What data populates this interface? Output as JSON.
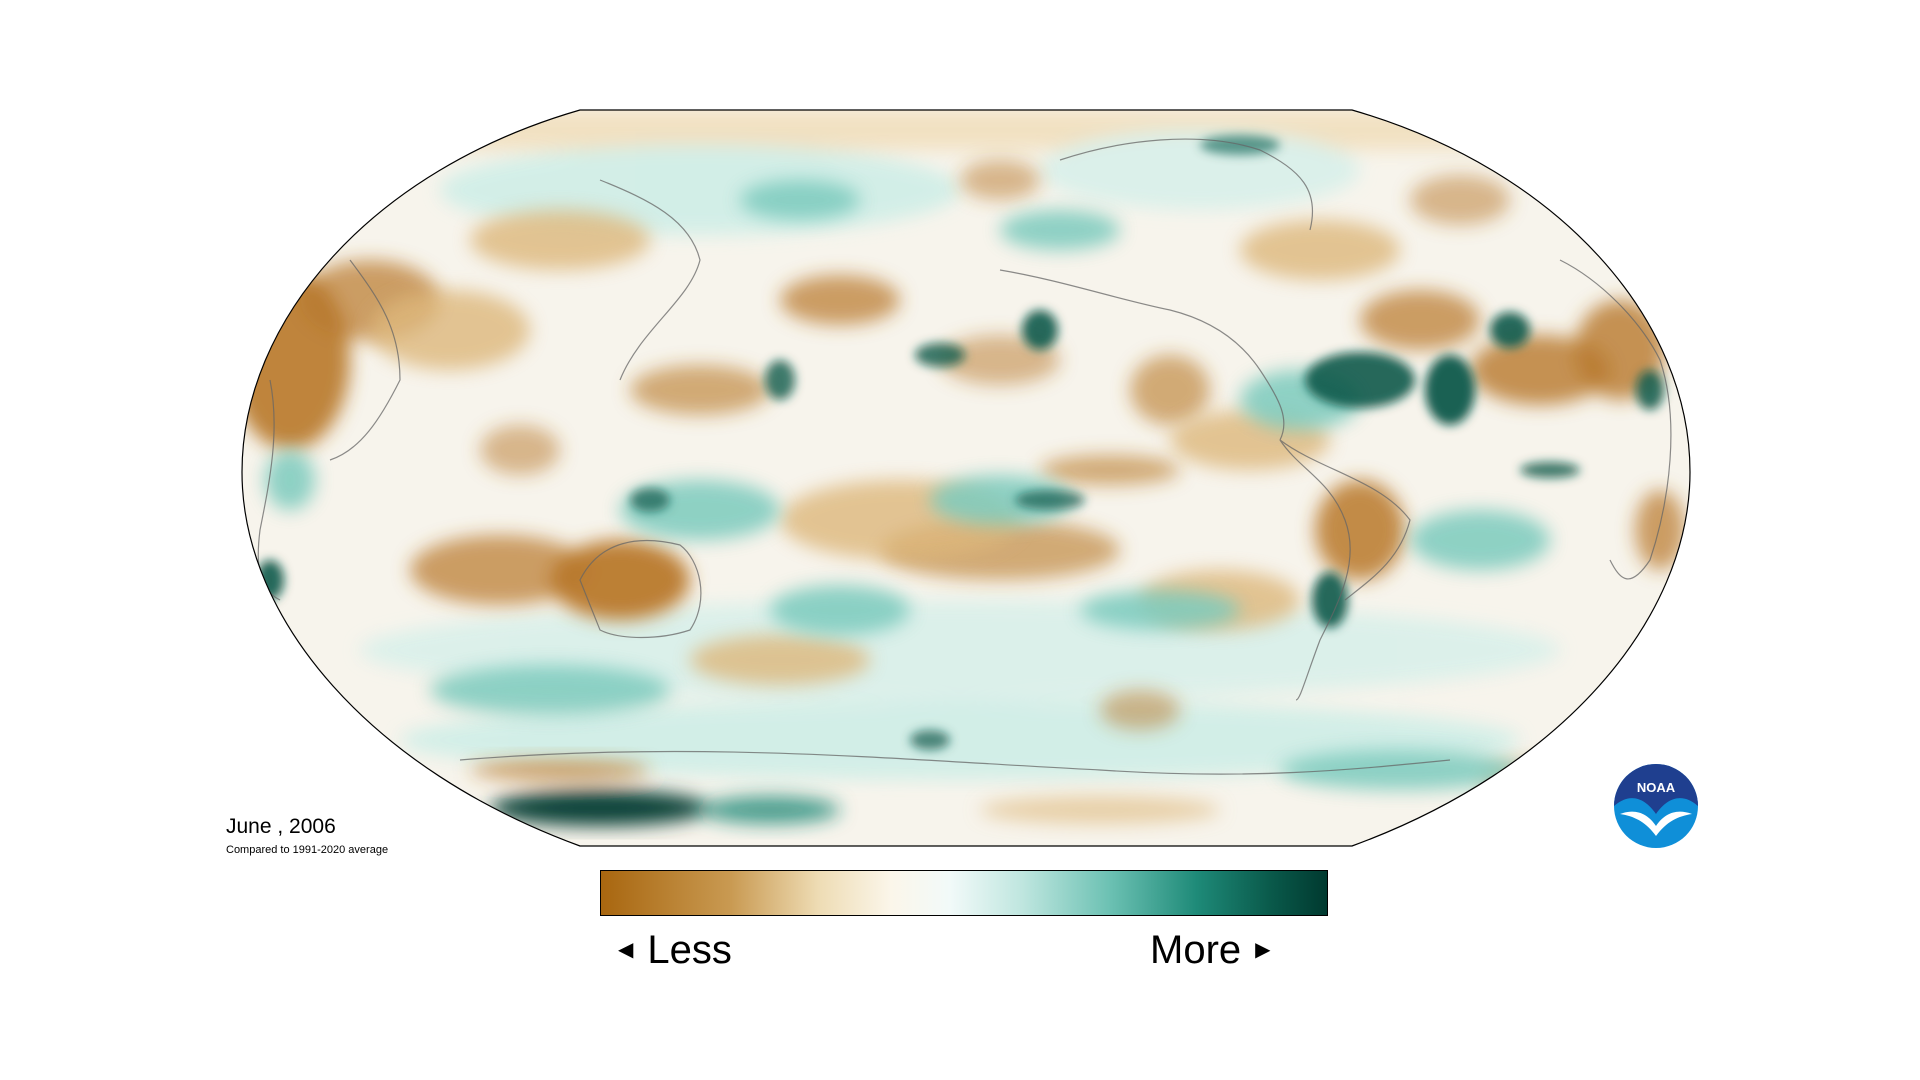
{
  "map": {
    "date": "June , 2006",
    "baseline": "Compared to 1991-2020 average",
    "projection": "robinson",
    "variable": "precipitation anomaly",
    "center_longitude": 180
  },
  "legend": {
    "low_label": "Less",
    "high_label": "More",
    "low_arrow_icon": "triangle-left",
    "high_arrow_icon": "triangle-right",
    "colors": [
      "#a8660f",
      "#c99a52",
      "#eedcb4",
      "#fbf6ea",
      "#f2faf9",
      "#bfe6df",
      "#6cc1b3",
      "#1e8a78",
      "#0a5a4b",
      "#00392f"
    ]
  },
  "logo": {
    "text": "NOAA",
    "icon": "noaa-seagull-logo"
  }
}
